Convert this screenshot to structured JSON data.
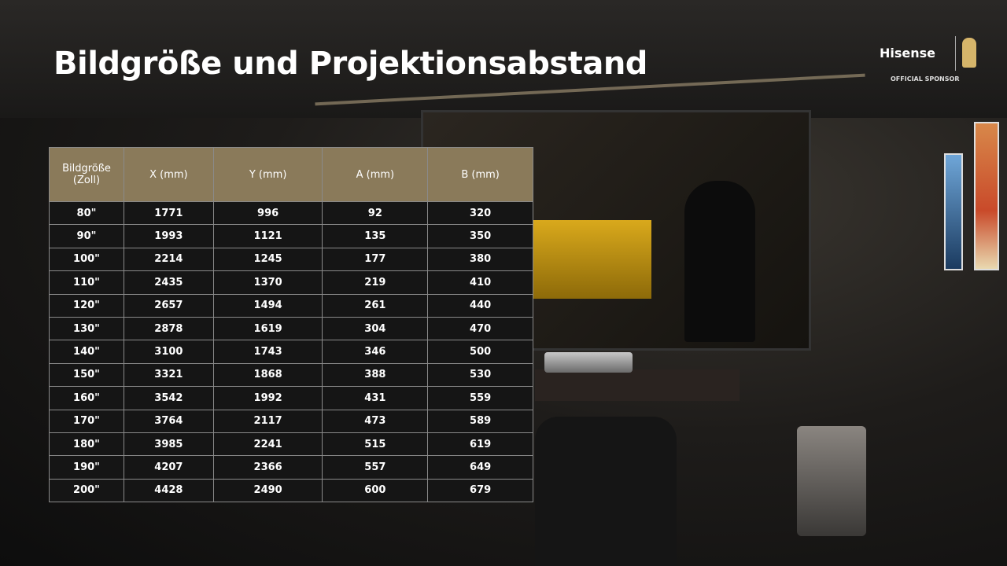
{
  "header": {
    "title": "Bildgröße und Projektionsabstand",
    "brand": "Hisense",
    "sponsor": "OFFICIAL SPONSOR"
  },
  "table": {
    "columns": [
      "Bildgröße (Zoll)",
      "X (mm)",
      "Y (mm)",
      "A (mm)",
      "B (mm)"
    ],
    "rows": [
      [
        "80\"",
        1771,
        996,
        92,
        320
      ],
      [
        "90\"",
        1993,
        1121,
        135,
        350
      ],
      [
        "100\"",
        2214,
        1245,
        177,
        380
      ],
      [
        "110\"",
        2435,
        1370,
        219,
        410
      ],
      [
        "120\"",
        2657,
        1494,
        261,
        440
      ],
      [
        "130\"",
        2878,
        1619,
        304,
        470
      ],
      [
        "140\"",
        3100,
        1743,
        346,
        500
      ],
      [
        "150\"",
        3321,
        1868,
        388,
        530
      ],
      [
        "160\"",
        3542,
        1992,
        431,
        559
      ],
      [
        "170\"",
        3764,
        2117,
        473,
        589
      ],
      [
        "180\"",
        3985,
        2241,
        515,
        619
      ],
      [
        "190\"",
        4207,
        2366,
        557,
        649
      ],
      [
        "200\"",
        4428,
        2490,
        600,
        679
      ]
    ]
  }
}
